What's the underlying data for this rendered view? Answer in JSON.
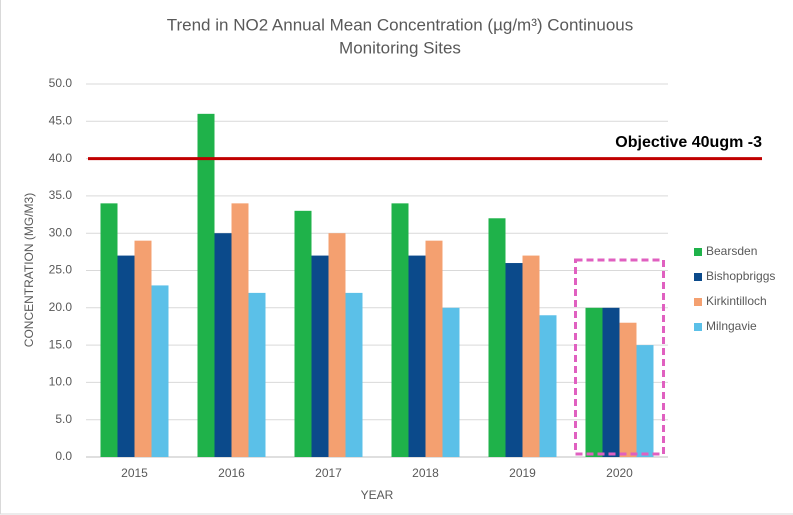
{
  "chart_data": {
    "type": "bar",
    "title": [
      "Trend in NO2 Annual Mean Concentration (µg/m³) Continuous",
      "Monitoring Sites"
    ],
    "x_label": "YEAR",
    "y_label": "CONCENTRATION (MG/M3)",
    "categories": [
      "2015",
      "2016",
      "2017",
      "2018",
      "2019",
      "2020"
    ],
    "series": [
      {
        "name": "Bearsden",
        "color": "#1fb24a",
        "values": [
          34,
          46,
          33,
          34,
          32,
          20
        ]
      },
      {
        "name": "Bishopbriggs",
        "color": "#0b4a8b",
        "values": [
          27,
          30,
          27,
          27,
          26,
          20
        ]
      },
      {
        "name": "Kirkintilloch",
        "color": "#f4a070",
        "values": [
          29,
          34,
          30,
          29,
          27,
          18
        ]
      },
      {
        "name": "Milngavie",
        "color": "#5bc0e8",
        "values": [
          23,
          22,
          22,
          20,
          19,
          15
        ]
      }
    ],
    "ylim": [
      0,
      50
    ],
    "yticks": [
      {
        "value": 0,
        "label": "0.0"
      },
      {
        "value": 5,
        "label": "5.0"
      },
      {
        "value": 10,
        "label": "10.0"
      },
      {
        "value": 15,
        "label": "15.0"
      },
      {
        "value": 20,
        "label": "20.0"
      },
      {
        "value": 25,
        "label": "25.0"
      },
      {
        "value": 30,
        "label": "30.0"
      },
      {
        "value": 35,
        "label": "35.0"
      },
      {
        "value": 40,
        "label": "40.0"
      },
      {
        "value": 45,
        "label": "45.0"
      },
      {
        "value": 50,
        "label": "50.0"
      }
    ],
    "grid": true,
    "legend": "right",
    "reference_line": {
      "value": 40,
      "label": "Objective 40ugm -3",
      "color": "#c00000"
    },
    "highlight": {
      "category": "2020",
      "color": "#e060c0"
    }
  }
}
